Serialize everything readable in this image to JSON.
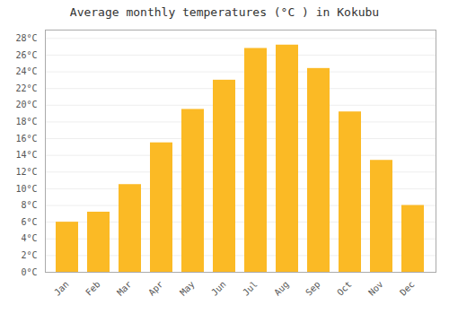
{
  "chart_data": {
    "type": "bar",
    "title": "Average monthly temperatures (°C ) in Kokubu",
    "categories": [
      "Jan",
      "Feb",
      "Mar",
      "Apr",
      "May",
      "Jun",
      "Jul",
      "Aug",
      "Sep",
      "Oct",
      "Nov",
      "Dec"
    ],
    "values": [
      6.0,
      7.2,
      10.5,
      15.5,
      19.5,
      23.0,
      26.8,
      27.2,
      24.4,
      19.2,
      13.4,
      8.0
    ],
    "color": "#FBBA25",
    "ylim": [
      0,
      29
    ],
    "yticks": [
      {
        "value": 0,
        "label": "0°C"
      },
      {
        "value": 2,
        "label": "2°C"
      },
      {
        "value": 4,
        "label": "4°C"
      },
      {
        "value": 6,
        "label": "6°C"
      },
      {
        "value": 8,
        "label": "8°C"
      },
      {
        "value": 10,
        "label": "10°C"
      },
      {
        "value": 12,
        "label": "12°C"
      },
      {
        "value": 14,
        "label": "14°C"
      },
      {
        "value": 16,
        "label": "16°C"
      },
      {
        "value": 18,
        "label": "18°C"
      },
      {
        "value": 20,
        "label": "20°C"
      },
      {
        "value": 22,
        "label": "22°C"
      },
      {
        "value": 24,
        "label": "24°C"
      },
      {
        "value": 26,
        "label": "26°C"
      },
      {
        "value": 28,
        "label": "28°C"
      }
    ],
    "grid": true
  }
}
